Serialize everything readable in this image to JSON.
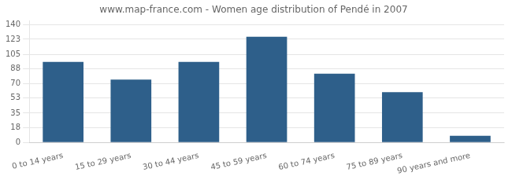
{
  "chart_data": {
    "type": "bar",
    "title": "www.map-france.com - Women age distribution of Pendé in 2007",
    "categories": [
      "0 to 14 years",
      "15 to 29 years",
      "30 to 44 years",
      "45 to 59 years",
      "60 to 74 years",
      "75 to 89 years",
      "90 years and more"
    ],
    "values": [
      96,
      75,
      96,
      126,
      82,
      60,
      8
    ],
    "color": "#2e5f8a",
    "ylim": [
      0,
      145
    ],
    "yticks": [
      0,
      18,
      35,
      53,
      70,
      88,
      105,
      123,
      140
    ],
    "grid": true
  }
}
